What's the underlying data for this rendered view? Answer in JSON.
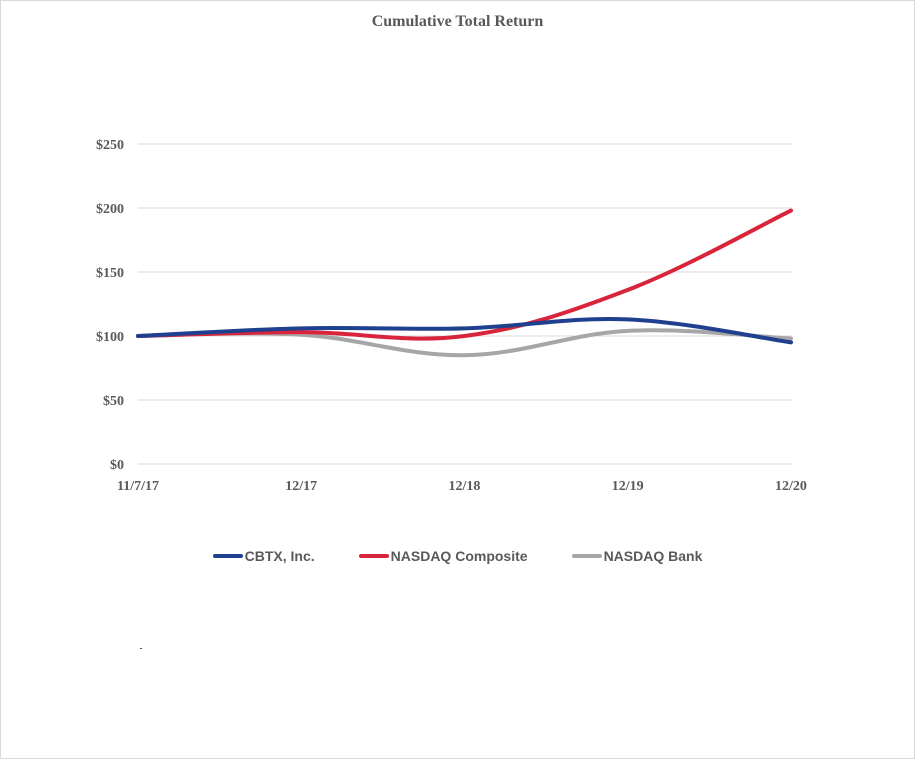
{
  "chart_data": {
    "type": "line",
    "title": "Cumulative Total Return",
    "xlabel": "",
    "ylabel": "",
    "categories": [
      "11/7/17",
      "12/17",
      "12/18",
      "12/19",
      "12/20"
    ],
    "y_tick_labels": [
      "$0",
      "$50",
      "$100",
      "$150",
      "$200",
      "$250"
    ],
    "y_ticks": [
      0,
      50,
      100,
      150,
      200,
      250
    ],
    "ylim": [
      0,
      250
    ],
    "grid": true,
    "legend_position": "bottom",
    "series": [
      {
        "name": "CBTX, Inc.",
        "color": "#1f3f8f",
        "values": [
          100,
          106,
          106,
          113,
          95
        ]
      },
      {
        "name": "NASDAQ Composite",
        "color": "#d9253b",
        "values": [
          100,
          103,
          100,
          136,
          198
        ]
      },
      {
        "name": "NASDAQ Bank",
        "color": "#a6a6a6",
        "values": [
          100,
          101,
          85,
          104,
          98
        ]
      }
    ]
  }
}
